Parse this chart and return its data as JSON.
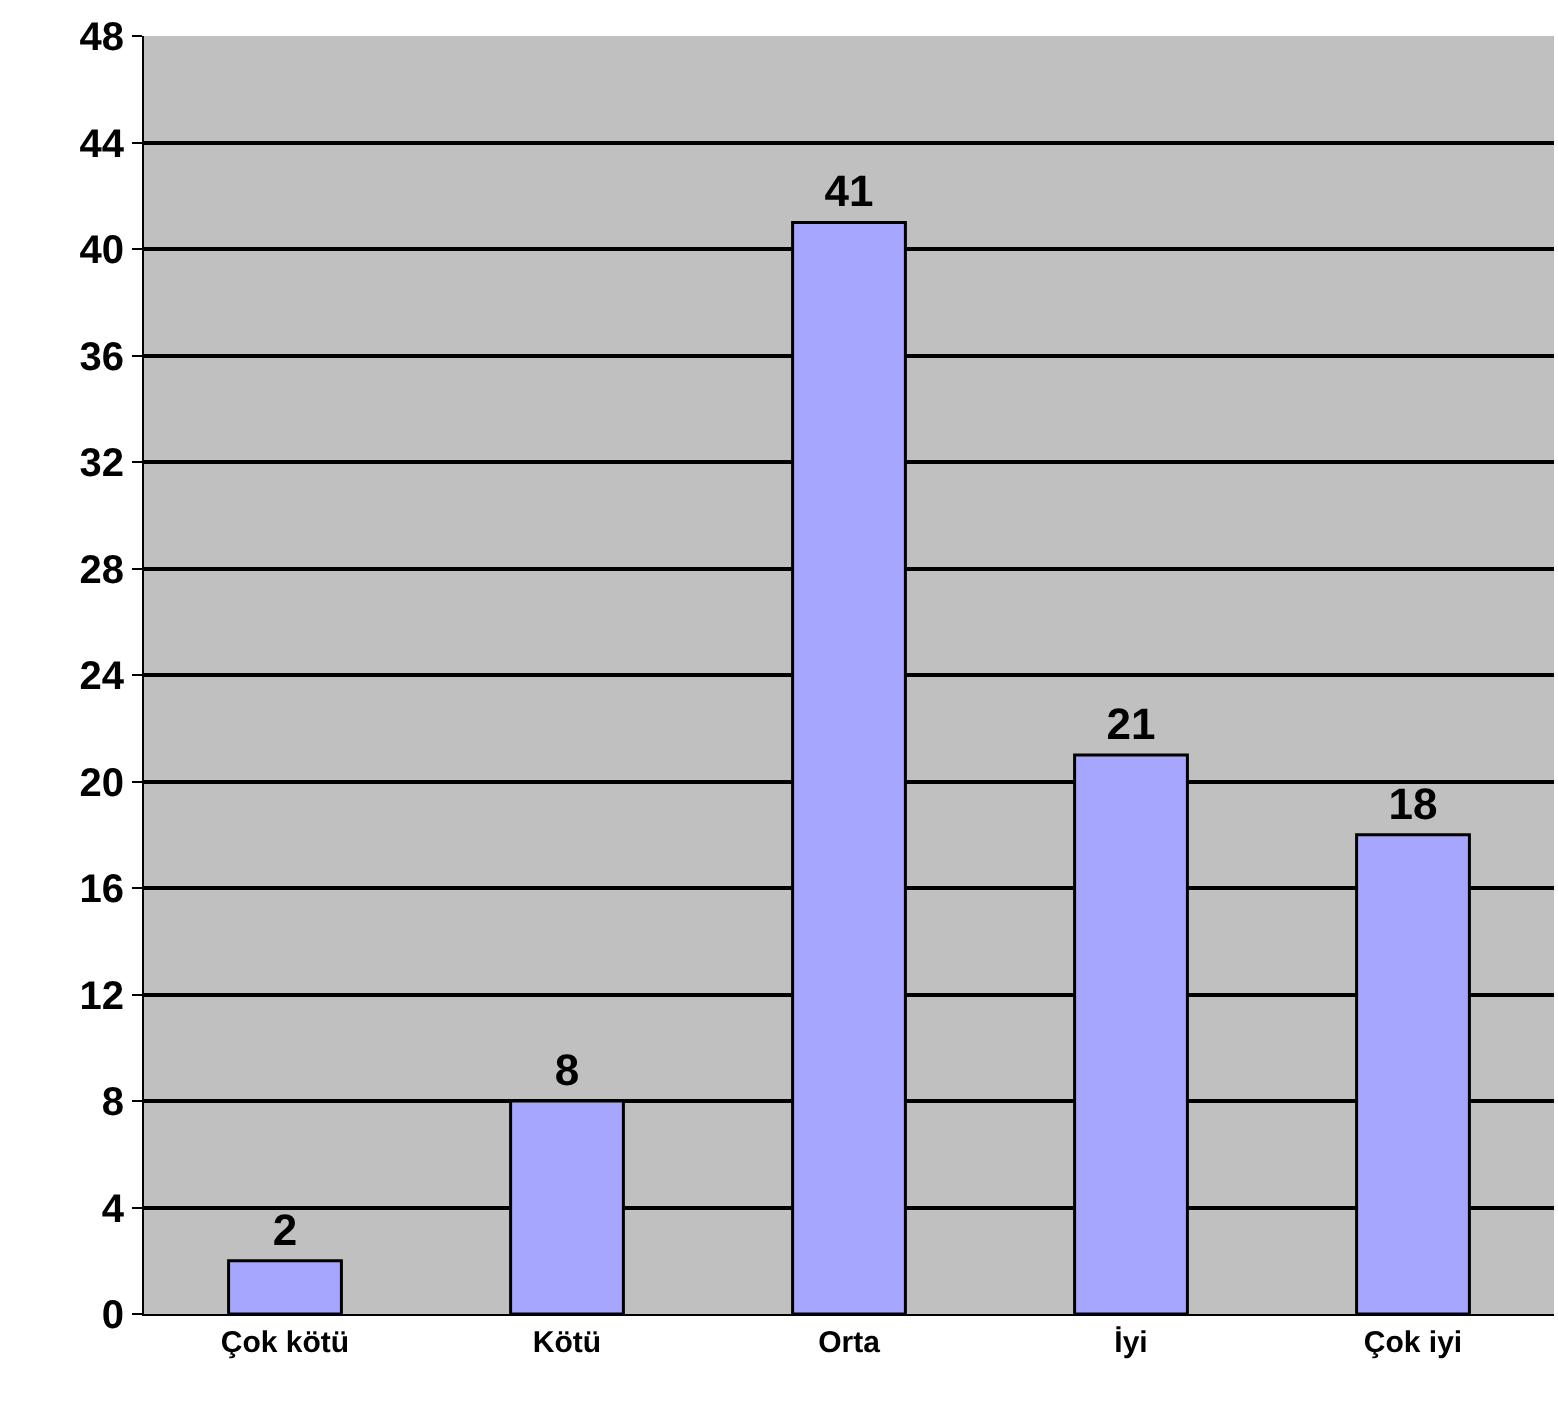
{
  "chart_data": {
    "type": "bar",
    "categories": [
      "Çok kötü",
      "Kötü",
      "Orta",
      "İyi",
      "Çok iyi"
    ],
    "values": [
      2,
      8,
      41,
      21,
      18
    ],
    "color": "#a6a6ff",
    "ylim": [
      0,
      48
    ],
    "yticks": [
      0,
      4,
      8,
      12,
      16,
      20,
      24,
      28,
      32,
      36,
      40,
      44,
      48
    ],
    "grid": "y",
    "data_labels": true
  }
}
